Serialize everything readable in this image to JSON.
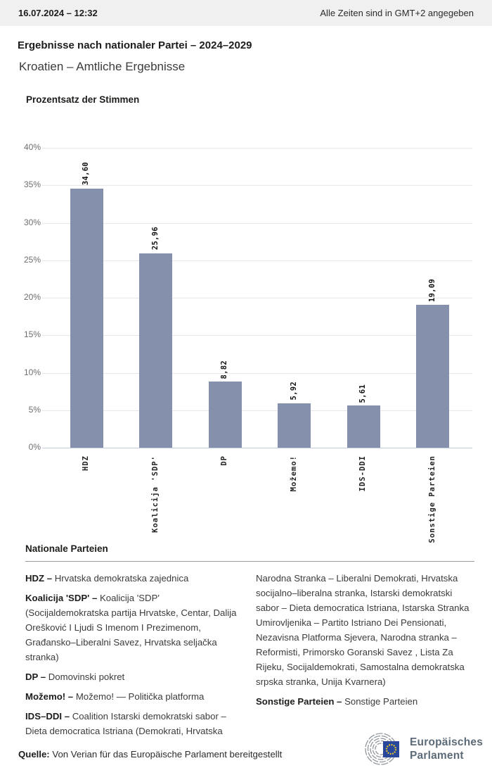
{
  "header": {
    "datetime": "16.07.2024 – 12:32",
    "timezone_note": "Alle Zeiten sind in GMT+2 angegeben"
  },
  "title": "Ergebnisse nach nationaler Partei – 2024–2029",
  "subtitle": "Kroatien – Amtliche Ergebnisse",
  "chart_data": {
    "type": "bar",
    "title": "Prozentsatz der Stimmen",
    "categories": [
      "HDZ",
      "Koalicija 'SDP'",
      "DP",
      "Možemo!",
      "IDS-DDI",
      "Sonstige Parteien"
    ],
    "values": [
      34.6,
      25.96,
      8.82,
      5.92,
      5.61,
      19.09
    ],
    "value_labels": [
      "34,60",
      "25,96",
      "8,82",
      "5,92",
      "5,61",
      "19,09"
    ],
    "ylabel": "",
    "xlabel": "",
    "ylim": [
      0,
      40
    ],
    "ytick_step": 5,
    "ytick_labels": [
      "40%",
      "35%",
      "30%",
      "25%",
      "20%",
      "15%",
      "10%",
      "5%",
      "0%"
    ],
    "grid": true,
    "legend_position": "none",
    "bar_color": "#8590AD",
    "gridline_color": "#e8e8e8",
    "axis_color": "#c3cbdd"
  },
  "legend": {
    "heading": "Nationale Parteien",
    "entries": [
      {
        "abbr": "HDZ –",
        "full": "Hrvatska demokratska zajednica"
      },
      {
        "abbr": "Koalicija 'SDP' –",
        "full": "Koalicija 'SDP' (Socijaldemokratska partija Hrvatske, Centar, Dalija Orešković I Ljudi S Imenom I Prezimenom, Građansko–Liberalni Savez, Hrvatska seljačka stranka)"
      },
      {
        "abbr": "DP –",
        "full": "Domovinski pokret"
      },
      {
        "abbr": "Možemo! –",
        "full": "Možemo! — Politička platforma"
      },
      {
        "abbr": "IDS–DDI –",
        "full": "Coalition Istarski demokratski sabor – Dieta democratica Istriana (Demokrati, Hrvatska Narodna Stranka – Liberalni Demokrati, Hrvatska socijalno–liberalna stranka, Istarski demokratski sabor – Dieta democratica Istriana, Istarska Stranka Umirovljenika – Partito Istriano Dei Pensionati, Nezavisna Platforma Sjevera, Narodna stranka – Reformisti, Primorsko Goranski Savez , Lista Za Rijeku, Socijaldemokrati, Samostalna demokratska srpska stranka, Unija Kvarnera)"
      },
      {
        "abbr": "Sonstige Parteien –",
        "full": "Sonstige Parteien"
      }
    ]
  },
  "footer": {
    "source_label": "Quelle:",
    "source_text": "Von Verian für das Europäische Parlament bereitgestellt",
    "logo_line1": "Europäisches",
    "logo_line2": "Parlament",
    "logo_blue": "#29479B",
    "logo_star_yellow": "#FFD617"
  }
}
